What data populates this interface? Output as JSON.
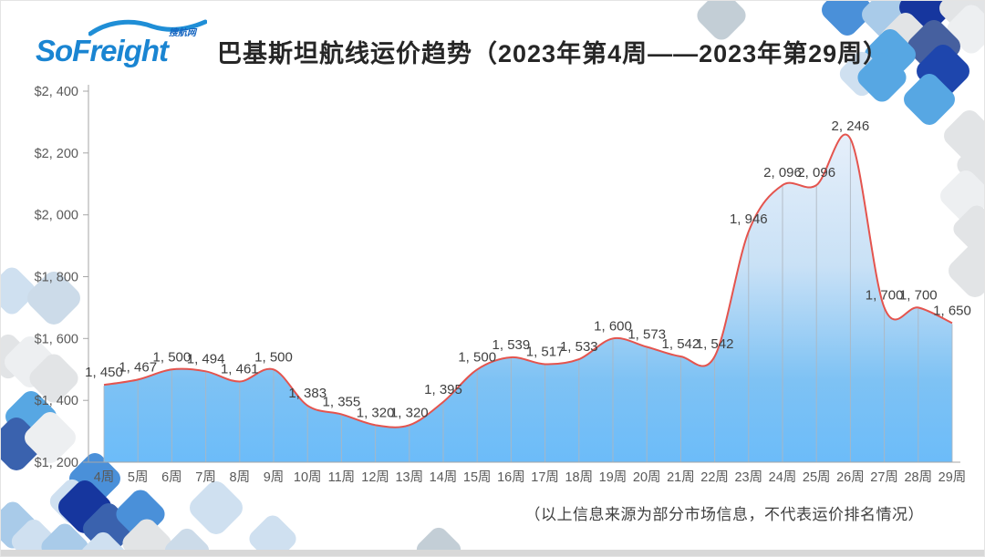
{
  "header": {
    "logo_text": "SoFreight",
    "logo_sub": "搜航网",
    "title": "巴基斯坦航线运价趋势（2023年第4周——2023年第29周）"
  },
  "page": {
    "footer_note": "（以上信息来源为部分市场信息，不代表运价排名情况）"
  },
  "chart_data": {
    "type": "area",
    "title": "巴基斯坦航线运价趋势（2023年第4周——2023年第29周）",
    "xlabel": "",
    "ylabel": "",
    "categories": [
      "4周",
      "5周",
      "6周",
      "7周",
      "8周",
      "9周",
      "10周",
      "11周",
      "12周",
      "13周",
      "14周",
      "15周",
      "16周",
      "17周",
      "18周",
      "19周",
      "20周",
      "21周",
      "22周",
      "23周",
      "24周",
      "25周",
      "26周",
      "27周",
      "28周",
      "29周"
    ],
    "values": [
      1450,
      1467,
      1500,
      1494,
      1461,
      1500,
      1383,
      1355,
      1320,
      1320,
      1395,
      1500,
      1539,
      1517,
      1533,
      1600,
      1573,
      1542,
      1542,
      1946,
      2096,
      2096,
      2246,
      1700,
      1700,
      1650
    ],
    "value_labels": [
      "1, 450",
      "1, 467",
      "1, 500",
      "1, 494",
      "1, 461",
      "1, 500",
      "1, 383",
      "1, 355",
      "1, 320",
      "1, 320",
      "1, 395",
      "1, 500",
      "1, 539",
      "1, 517",
      "1, 533",
      "1, 600",
      "1, 573",
      "1, 542",
      "1, 542",
      "1, 946",
      "2, 096",
      "2, 096",
      "2, 246",
      "1, 700",
      "1, 700",
      "1, 650"
    ],
    "ylim": [
      1200,
      2400
    ],
    "y_tick_step": 200,
    "y_ticks": [
      {
        "label": "$1, 200",
        "value": 1200
      },
      {
        "label": "$1, 400",
        "value": 1400
      },
      {
        "label": "$1, 600",
        "value": 1600
      },
      {
        "label": "$1, 800",
        "value": 1800
      },
      {
        "label": "$2, 000",
        "value": 2000
      },
      {
        "label": "$2, 200",
        "value": 2200
      },
      {
        "label": "$2, 400",
        "value": 2400
      }
    ],
    "grid": "vertical drop lines only",
    "legend": "none",
    "line_color": "#e4544e",
    "fill_stops": [
      [
        0,
        "#e6effa"
      ],
      [
        0.4,
        "#c9e1f6"
      ],
      [
        0.75,
        "#7ec2f4"
      ],
      [
        1,
        "#6cbcf9"
      ]
    ],
    "drop_line_color": "#aeb6bf",
    "axis_color": "#a6a6a6",
    "axis_text_color": "#595959",
    "label_text_color": "#404040"
  },
  "colors": {
    "brand_blue": "#1a85d2",
    "bottom_bar": "#d8d8d8",
    "diamond_palette": {
      "navy": "#16369e",
      "royal": "#1e46ad",
      "indigo": "#3a62ae",
      "slate": "#46609f",
      "blue": "#4a90d9",
      "sky": "#57a7e3",
      "light": "#a9cbe9",
      "pale": "#cfe0f0",
      "paleblue": "#ccdbe9",
      "grayblue": "#c3ced6",
      "gray": "#e2e4e6",
      "lightgray": "#edeff1"
    }
  }
}
